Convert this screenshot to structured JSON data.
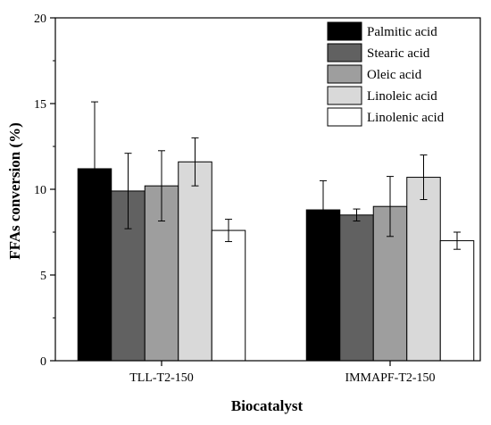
{
  "chart_data": {
    "type": "bar",
    "xlabel": "Biocatalyst",
    "ylabel": "FFAs conversion (%)",
    "ylim": [
      0,
      20
    ],
    "yticks": [
      0,
      5,
      10,
      15,
      20
    ],
    "grid": false,
    "legend_position": "top-right",
    "categories": [
      "TLL-T2-150",
      "IMMAPF-T2-150"
    ],
    "series": [
      {
        "name": "Palmitic acid",
        "color": "#000000",
        "values": [
          11.2,
          8.8
        ],
        "errors": [
          3.9,
          1.7
        ]
      },
      {
        "name": "Stearic acid",
        "color": "#616161",
        "values": [
          9.9,
          8.5
        ],
        "errors": [
          2.2,
          0.35
        ]
      },
      {
        "name": "Oleic acid",
        "color": "#9e9e9e",
        "values": [
          10.2,
          9.0
        ],
        "errors": [
          2.05,
          1.75
        ]
      },
      {
        "name": "Linoleic acid",
        "color": "#d9d9d9",
        "values": [
          11.6,
          10.7
        ],
        "errors": [
          1.4,
          1.3
        ]
      },
      {
        "name": "Linolenic acid",
        "color": "#ffffff",
        "values": [
          7.6,
          7.0
        ],
        "errors": [
          0.65,
          0.5
        ]
      }
    ]
  }
}
